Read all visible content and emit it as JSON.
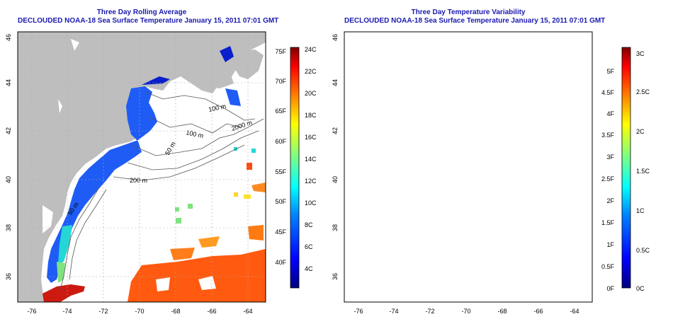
{
  "panels": [
    {
      "title": "Three Day Rolling Average",
      "subtitle": "DECLOUDED NOAA-18 Sea Surface Temperature January 15, 2011 07:01 GMT",
      "colorbar_f": [
        "75F",
        "70F",
        "65F",
        "60F",
        "55F",
        "50F",
        "45F",
        "40F"
      ],
      "colorbar_c": [
        "24C",
        "22C",
        "20C",
        "18C",
        "16C",
        "14C",
        "12C",
        "10C",
        "8C",
        "6C",
        "4C"
      ],
      "colorbar_colors": [
        "#00007f",
        "#0000ff",
        "#0080ff",
        "#00ffff",
        "#80ff80",
        "#ffff00",
        "#ff8000",
        "#ff0000",
        "#7f0000"
      ]
    },
    {
      "title": "Three Day Temperature Variability",
      "subtitle": "DECLOUDED NOAA-18 Sea Surface Temperature January 15, 2011 07:01 GMT",
      "colorbar_f": [
        "5F",
        "4.5F",
        "4F",
        "3.5F",
        "3F",
        "2.5F",
        "2F",
        "1.5F",
        "1F",
        "0.5F",
        "0F"
      ],
      "colorbar_c": [
        "3C",
        "2.5C",
        "2C",
        "1.5C",
        "1C",
        "0.5C",
        "0C"
      ],
      "colorbar_colors": [
        "#00007f",
        "#0000ff",
        "#0080ff",
        "#00ffff",
        "#80ff80",
        "#ffff00",
        "#ff8000",
        "#ff0000",
        "#7f0000"
      ]
    }
  ],
  "lat_labels": [
    "46",
    "44",
    "42",
    "40",
    "38",
    "36"
  ],
  "lon_labels": [
    "-76",
    "-74",
    "-72",
    "-70",
    "-68",
    "-66",
    "-64"
  ],
  "contours": {
    "c100": "100 m",
    "c2000": "2000 m",
    "c50": "50 m",
    "c200": "200 m"
  },
  "colors": {
    "land": "#bebebe",
    "title": "#1a1ab0",
    "contour": "#555555"
  }
}
